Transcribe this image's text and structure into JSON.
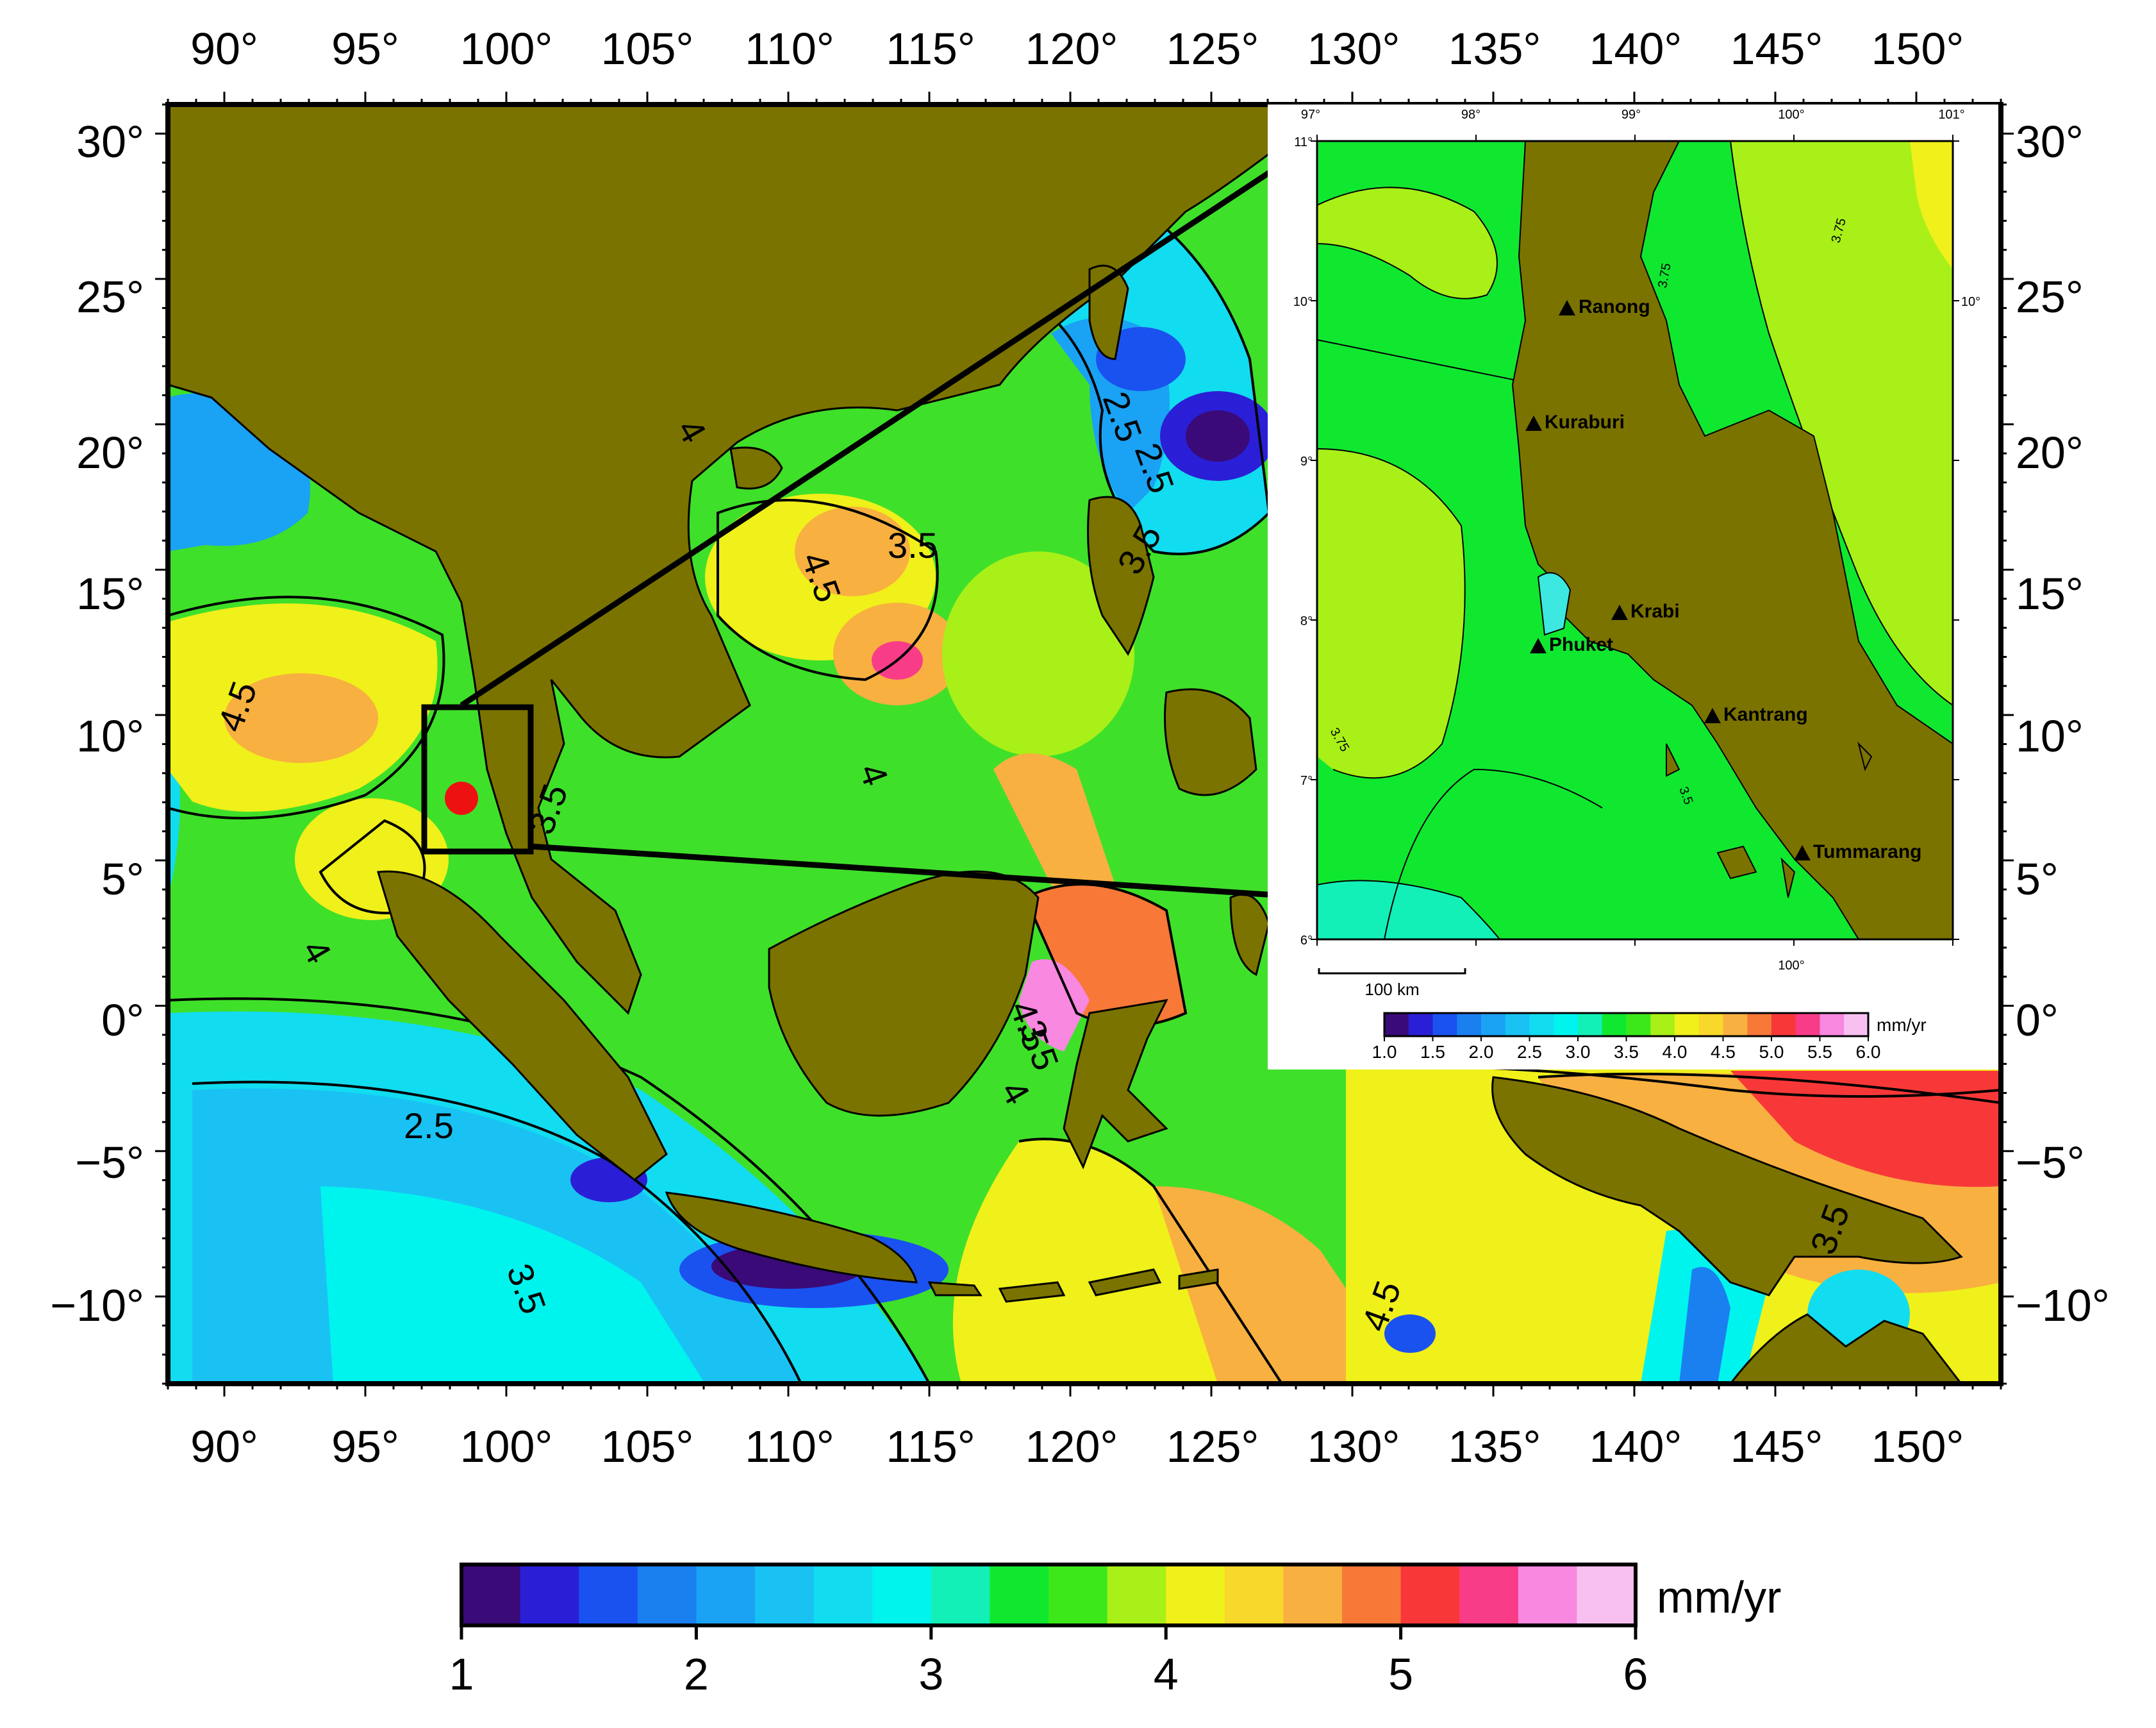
{
  "map": {
    "lon_ticks": [
      "90°",
      "95°",
      "100°",
      "105°",
      "110°",
      "115°",
      "120°",
      "125°",
      "130°",
      "135°",
      "140°",
      "145°",
      "150°"
    ],
    "lat_ticks": [
      "30°",
      "25°",
      "20°",
      "15°",
      "10°",
      "5°",
      "0°",
      "−5°",
      "−10°"
    ],
    "contour_labels": [
      "4.5",
      "4",
      "4",
      "3.5",
      "3.5",
      "2.5",
      "3.5",
      "4.5",
      "3.5",
      "2.5",
      "4",
      "4.5",
      "3.5",
      "3.5",
      "4",
      "4.5",
      "2.5"
    ],
    "study_site": "red-dot-marker",
    "colors": {
      "land": "#7b7300",
      "frame": "#000000",
      "site": "#ee1111"
    }
  },
  "inset": {
    "lon_ticks": [
      "97°",
      "98°",
      "99°",
      "100°",
      "101°"
    ],
    "lat_ticks": [
      "11°",
      "10°",
      "9°",
      "8°",
      "7°",
      "6°"
    ],
    "bottom_lon_label": "100°",
    "right_lat_label": "10°",
    "contour_labels": [
      "3.75",
      "3.75",
      "3.75",
      "3.5"
    ],
    "scale_bar": "100 km",
    "stations": [
      "Ranong",
      "Kuraburi",
      "Krabi",
      "Phuket",
      "Kantrang",
      "Tummarang"
    ],
    "colorbar": {
      "unit": "mm/yr",
      "ticks": [
        "1.0",
        "1.5",
        "2.0",
        "2.5",
        "3.0",
        "3.5",
        "4.0",
        "4.5",
        "5.0",
        "5.5",
        "6.0"
      ]
    }
  },
  "colorbar": {
    "unit": "mm/yr",
    "ticks": [
      "1",
      "2",
      "3",
      "4",
      "5",
      "6"
    ],
    "colors": [
      "#3a0a78",
      "#2a1fd6",
      "#1a52f0",
      "#1a80f0",
      "#1aa2f4",
      "#1ac2f4",
      "#12dcf0",
      "#00f4ee",
      "#12f0b8",
      "#10e830",
      "#3ce81a",
      "#a8f018",
      "#f0f01a",
      "#f8d82a",
      "#f8b040",
      "#f87838",
      "#f83838",
      "#f83c88",
      "#f888e0",
      "#f8c0f0"
    ]
  }
}
